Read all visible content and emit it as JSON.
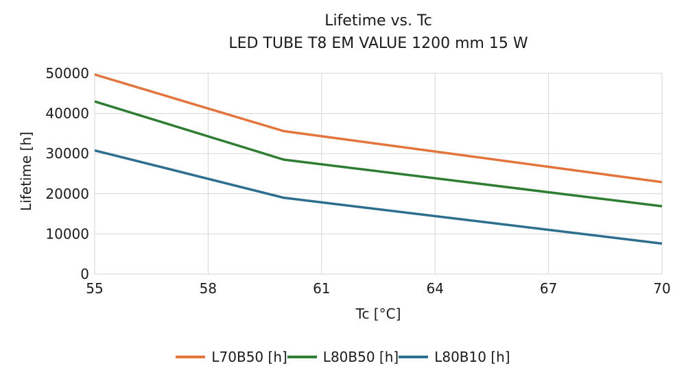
{
  "chart_data": {
    "type": "line",
    "title": "Lifetime vs. Tc",
    "subtitle": "LED TUBE T8 EM VALUE 1200 mm 15 W",
    "xlabel": "Tc [°C]",
    "ylabel": "Lifetime [h]",
    "x": [
      55,
      60,
      70
    ],
    "series": [
      {
        "name": "L70B50 [h]",
        "color": "#E2743C",
        "values": [
          49700,
          35600,
          22900
        ]
      },
      {
        "name": "L80B50 [h]",
        "color": "#2E7D32",
        "values": [
          43000,
          28500,
          16900
        ]
      },
      {
        "name": "L80B10 [h]",
        "color": "#2D6E8E",
        "values": [
          30800,
          19000,
          7600
        ]
      }
    ],
    "x_ticks": [
      55,
      58,
      61,
      64,
      67,
      70
    ],
    "y_ticks": [
      0,
      10000,
      20000,
      30000,
      40000,
      50000
    ],
    "xlim": [
      55,
      70
    ],
    "ylim": [
      0,
      50000
    ],
    "grid": true,
    "grid_color": "#D6D6D6",
    "text_color": "#1a1a1a",
    "legend_position": "bottom",
    "line_width": 3.5
  }
}
